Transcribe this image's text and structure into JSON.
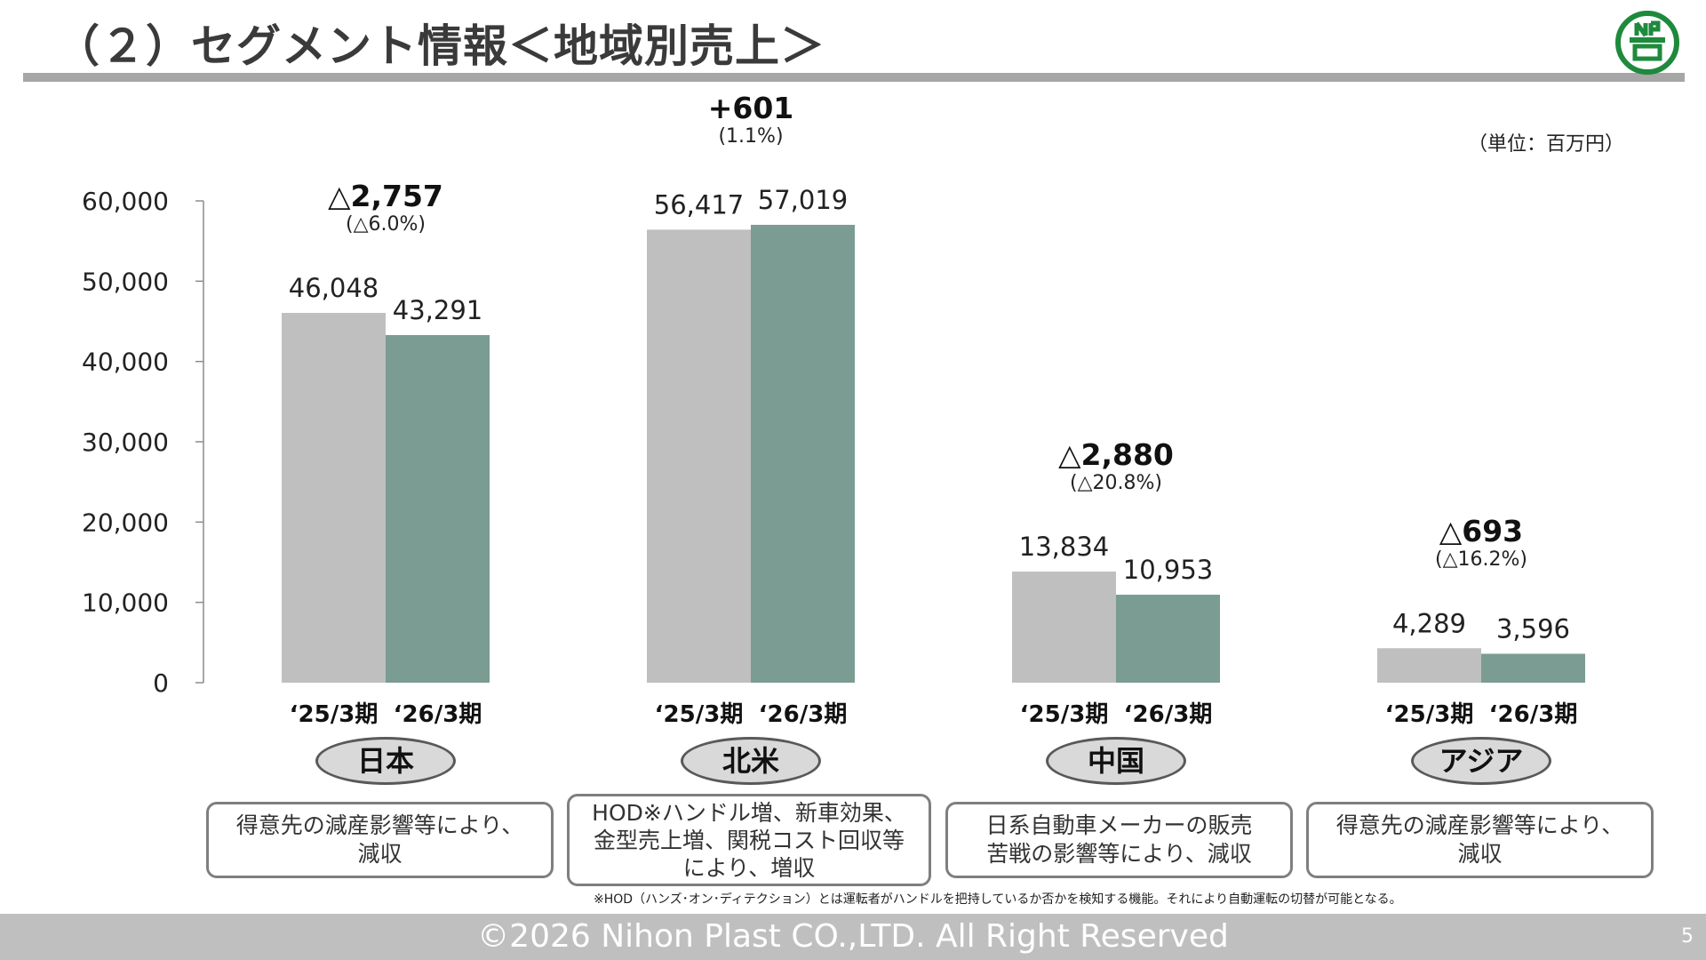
{
  "header": {
    "title": "（２）セグメント情報＜地域別売上＞",
    "logo_icon": "nihon-plast-logo",
    "logo_color": "#1e8a3c"
  },
  "unit_label": "（単位：百万円）",
  "chart_data": {
    "type": "bar",
    "categories": [
      "日本",
      "北米",
      "中国",
      "アジア"
    ],
    "period_labels": [
      "‘25/3期",
      "‘26/3期"
    ],
    "series": [
      {
        "values": [
          46048,
          56417,
          13834,
          4289
        ],
        "value_labels": [
          "46,048",
          "56,417",
          "13,834",
          "4,289"
        ],
        "color": "#bfbfbf"
      },
      {
        "values": [
          43291,
          57019,
          10953,
          3596
        ],
        "value_labels": [
          "43,291",
          "57,019",
          "10,953",
          "3,596"
        ],
        "color": "#7a9c92"
      }
    ],
    "changes": [
      {
        "value": "△2,757",
        "pct": "(△6.0%)"
      },
      {
        "value": "+601",
        "pct": "(1.1%)"
      },
      {
        "value": "△2,880",
        "pct": "(△20.8%)"
      },
      {
        "value": "△693",
        "pct": "(△16.2%)"
      }
    ],
    "ylim": [
      0,
      60000
    ],
    "yticks": [
      0,
      10000,
      20000,
      30000,
      40000,
      50000,
      60000
    ],
    "ytick_labels": [
      "0",
      "10,000",
      "20,000",
      "30,000",
      "40,000",
      "50,000",
      "60,000"
    ],
    "grid": false,
    "legend": "none"
  },
  "regions": [
    "日本",
    "北米",
    "中国",
    "アジア"
  ],
  "notes": [
    [
      "得意先の減産影響等により、",
      "減収"
    ],
    [
      "HOD※ハンドル増、新車効果、",
      "金型売上増、関税コスト回収等",
      "により、増収"
    ],
    [
      "日系自動車メーカーの販売",
      "苦戦の影響等により、減収"
    ],
    [
      "得意先の減産影響等により、",
      "減収"
    ]
  ],
  "footnote": "※HOD（ハンズ･オン･ディテクション）とは運転者がハンドルを把持しているか否かを検知する機能。それにより自動運転の切替が可能となる。",
  "footer": {
    "copyright": "©2026 Nihon Plast CO.,LTD. All Right Reserved",
    "page_number": "5"
  }
}
